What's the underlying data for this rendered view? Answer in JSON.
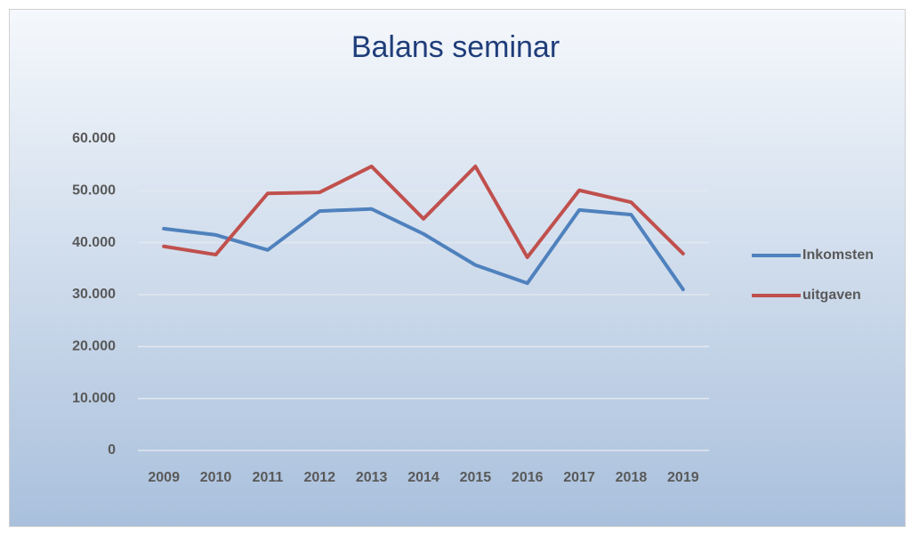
{
  "chart_data": {
    "type": "line",
    "title": "Balans seminar",
    "categories": [
      "2009",
      "2010",
      "2011",
      "2012",
      "2013",
      "2014",
      "2015",
      "2016",
      "2017",
      "2018",
      "2019"
    ],
    "series": [
      {
        "name": "Inkomsten",
        "color": "#4f81bd",
        "values": [
          42700,
          41500,
          38600,
          46100,
          46500,
          41700,
          35700,
          32200,
          46300,
          45400,
          31000
        ]
      },
      {
        "name": "uitgaven",
        "color": "#c0504d",
        "values": [
          39300,
          37700,
          49500,
          49700,
          54700,
          44600,
          54700,
          37200,
          50100,
          47800,
          37900
        ]
      }
    ],
    "ylim": [
      0,
      60000
    ],
    "yticks": [
      0,
      {
        "value": 10000,
        "label": "10.000"
      },
      {
        "value": 20000,
        "label": "20.000"
      },
      {
        "value": 30000,
        "label": "30.000"
      },
      {
        "value": 40000,
        "label": "40.000"
      },
      {
        "value": 50000,
        "label": "50.000"
      },
      {
        "value": 60000,
        "label": "60.000"
      }
    ],
    "grid": true,
    "legend": "right"
  }
}
